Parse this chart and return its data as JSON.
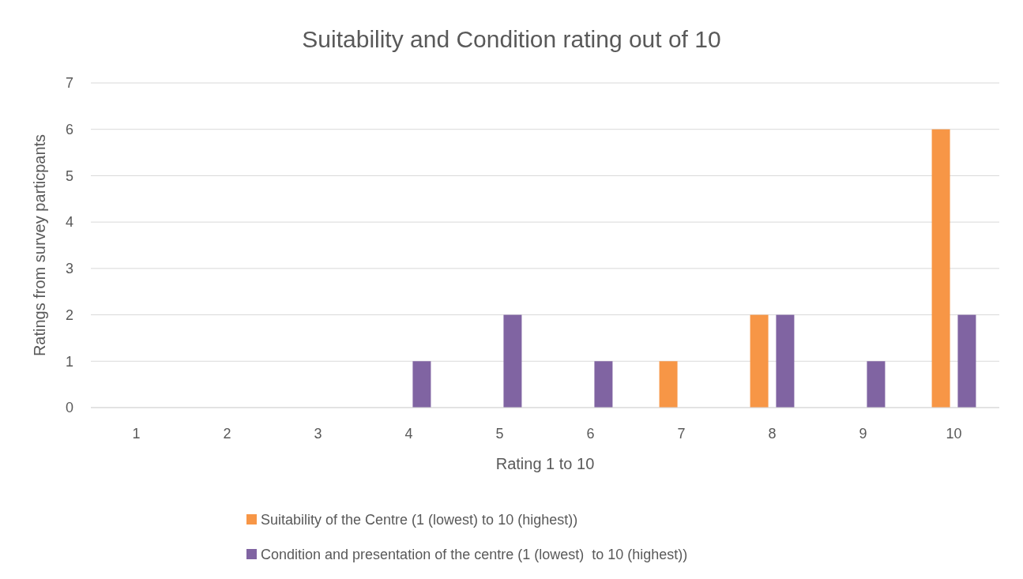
{
  "chart_data": {
    "type": "bar",
    "title": "Suitability and Condition rating out of 10",
    "xlabel": "Rating 1 to 10",
    "ylabel": "Ratings from survey particpants",
    "categories": [
      "1",
      "2",
      "3",
      "4",
      "5",
      "6",
      "7",
      "8",
      "9",
      "10"
    ],
    "series": [
      {
        "name": "Suitability of the Centre (1 (lowest) to 10 (highest))",
        "color": "#f79646",
        "values": [
          0,
          0,
          0,
          0,
          0,
          0,
          1,
          2,
          0,
          6
        ]
      },
      {
        "name": "Condition and presentation of the centre (1 (lowest)  to 10 (highest))",
        "color": "#8064a2",
        "values": [
          0,
          0,
          0,
          1,
          2,
          1,
          0,
          2,
          1,
          2
        ]
      }
    ],
    "ylim": [
      0,
      7
    ],
    "yticks": [
      0,
      1,
      2,
      3,
      4,
      5,
      6,
      7
    ],
    "grid": "y",
    "legend": "bottom"
  }
}
